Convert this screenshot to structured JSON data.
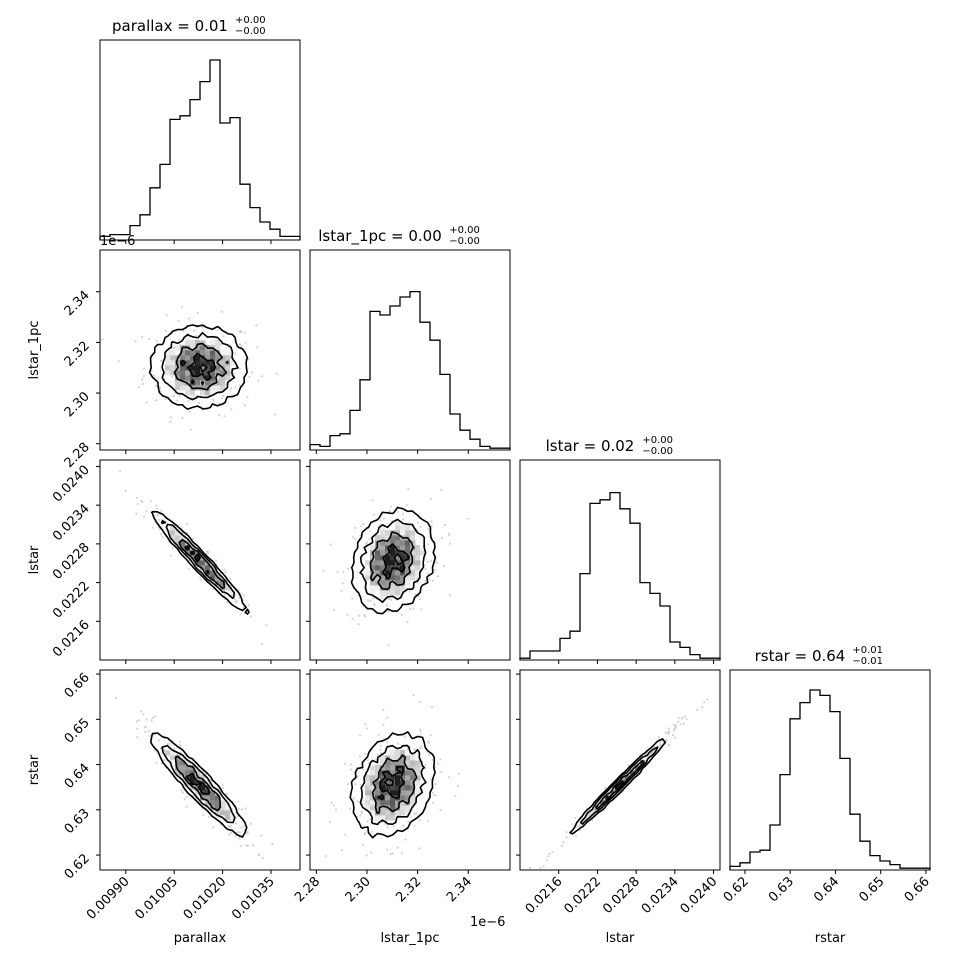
{
  "chart_data": {
    "type": "corner",
    "parameters": [
      "parallax",
      "lstar_1pc",
      "lstar",
      "rstar"
    ],
    "titles": [
      {
        "param": "parallax",
        "label": "parallax = 0.01",
        "sup": "+0.00",
        "sub": "−0.00"
      },
      {
        "param": "lstar_1pc",
        "label": "lstar_1pc = 0.00",
        "sup": "+0.00",
        "sub": "−0.00"
      },
      {
        "param": "lstar",
        "label": "lstar = 0.02",
        "sup": "+0.00",
        "sub": "−0.00"
      },
      {
        "param": "rstar",
        "label": "rstar = 0.64",
        "sup": "+0.01",
        "sub": "−0.01"
      }
    ],
    "axes": {
      "parallax": {
        "range": [
          0.00982,
          0.01044
        ],
        "ticks": [
          0.0099,
          0.01005,
          0.0102,
          0.01035
        ],
        "tick_labels": [
          "0.00990",
          "0.01005",
          "0.01020",
          "0.01035"
        ],
        "label": "parallax"
      },
      "lstar_1pc": {
        "range": [
          2.2775,
          2.3565
        ],
        "ticks": [
          2.28,
          2.3,
          2.32,
          2.34
        ],
        "tick_labels": [
          "2.28",
          "2.30",
          "2.32",
          "2.34"
        ],
        "label": "lstar_1pc",
        "offset": "1e−6"
      },
      "lstar": {
        "range": [
          0.021,
          0.0241
        ],
        "ticks": [
          0.0216,
          0.0222,
          0.0228,
          0.0234,
          0.024
        ],
        "tick_labels": [
          "0.0216",
          "0.0222",
          "0.0228",
          "0.0234",
          "0.0240"
        ],
        "label": "lstar"
      },
      "rstar": {
        "range": [
          0.6167,
          0.6609
        ],
        "ticks": [
          0.62,
          0.63,
          0.64,
          0.65,
          0.66
        ],
        "tick_labels": [
          "0.62",
          "0.63",
          "0.64",
          "0.65",
          "0.66"
        ],
        "label": "rstar"
      }
    },
    "histograms": {
      "parallax": [
        0.02,
        0.03,
        0.03,
        0.08,
        0.14,
        0.29,
        0.42,
        0.67,
        0.69,
        0.78,
        0.88,
        1.0,
        0.65,
        0.68,
        0.31,
        0.18,
        0.1,
        0.06,
        0.02,
        0.02
      ],
      "lstar_1pc": [
        0.03,
        0.02,
        0.08,
        0.09,
        0.22,
        0.39,
        0.77,
        0.75,
        0.8,
        0.85,
        0.88,
        0.71,
        0.61,
        0.42,
        0.2,
        0.11,
        0.06,
        0.02,
        0.01,
        0.01
      ],
      "lstar": [
        0.01,
        0.05,
        0.05,
        0.05,
        0.12,
        0.16,
        0.48,
        0.87,
        0.89,
        0.93,
        0.84,
        0.76,
        0.43,
        0.37,
        0.3,
        0.1,
        0.07,
        0.03,
        0.01,
        0.01
      ],
      "rstar": [
        0.02,
        0.04,
        0.1,
        0.11,
        0.25,
        0.53,
        0.84,
        0.93,
        1.0,
        0.97,
        0.88,
        0.62,
        0.31,
        0.16,
        0.08,
        0.05,
        0.03,
        0.01,
        0.01,
        0.01
      ]
    },
    "pairs": [
      {
        "x": "parallax",
        "y": "lstar_1pc",
        "mean": [
          0.010128,
          2.3103
        ],
        "sd": [
          7.5e-05,
          0.0082
        ],
        "rho": 0.0
      },
      {
        "x": "parallax",
        "y": "lstar",
        "mean": [
          0.010128,
          0.02254
        ],
        "sd": [
          7.5e-05,
          0.0004
        ],
        "rho": -0.97
      },
      {
        "x": "lstar_1pc",
        "y": "lstar",
        "mean": [
          2.3103,
          0.02254
        ],
        "sd": [
          0.0082,
          0.0004
        ],
        "rho": 0.2
      },
      {
        "x": "parallax",
        "y": "rstar",
        "mean": [
          0.010128,
          0.6355
        ],
        "sd": [
          7.5e-05,
          0.0057
        ],
        "rho": -0.93
      },
      {
        "x": "lstar_1pc",
        "y": "rstar",
        "mean": [
          2.3103,
          0.6355
        ],
        "sd": [
          0.0082,
          0.0057
        ],
        "rho": 0.25
      },
      {
        "x": "lstar",
        "y": "rstar",
        "mean": [
          0.02254,
          0.6355
        ],
        "sd": [
          0.0004,
          0.0057
        ],
        "rho": 0.99
      }
    ]
  }
}
